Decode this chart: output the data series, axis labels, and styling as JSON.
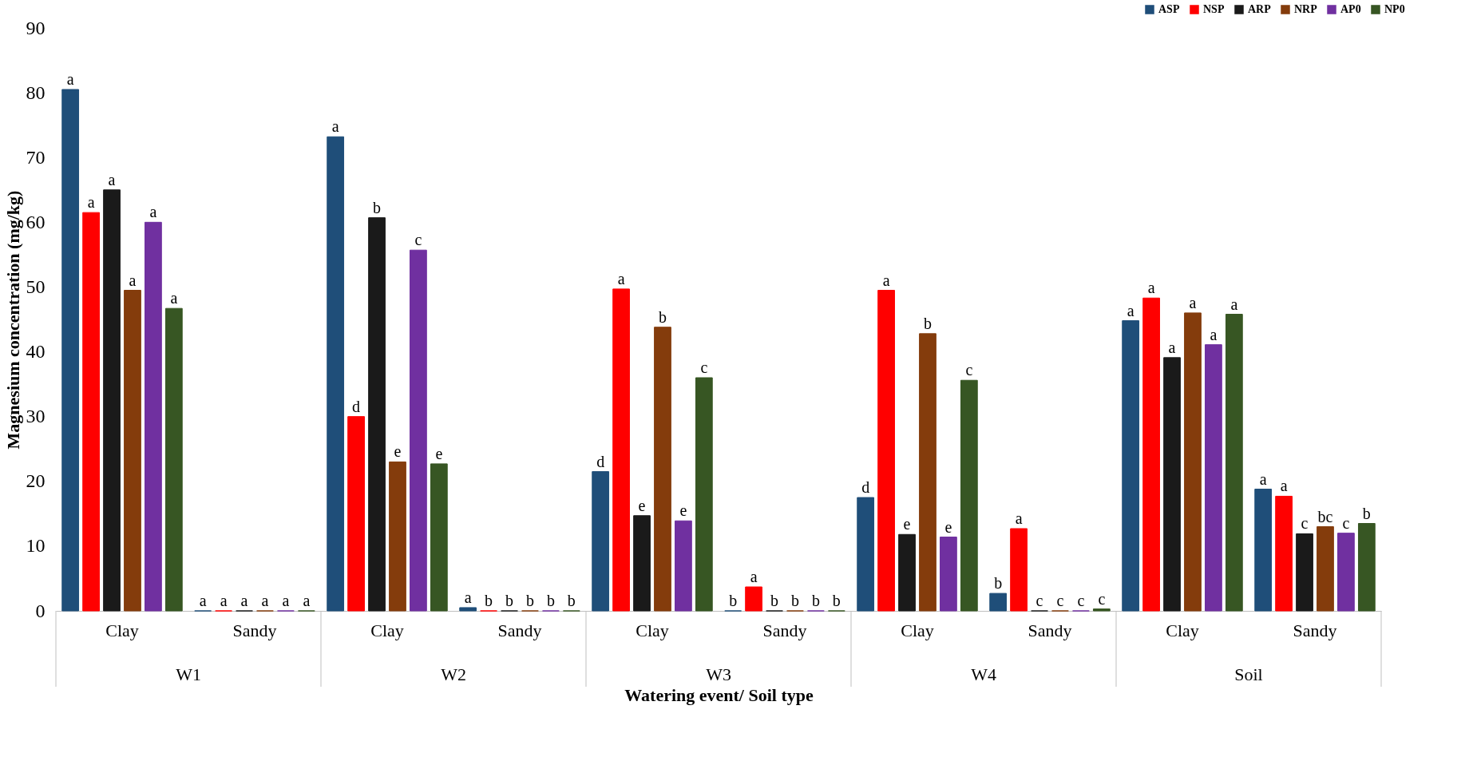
{
  "chart_data": {
    "type": "bar",
    "xlabel": "Watering event/ Soil type",
    "ylabel": "Magnesium concentration (mg/kg)",
    "categories": [
      "Clay",
      "Sandy",
      "Clay",
      "Sandy",
      "Clay",
      "Sandy",
      "Clay",
      "Sandy",
      "Clay",
      "Sandy"
    ],
    "annotations": [
      "W1",
      "W2",
      "W3",
      "W4",
      "Soil"
    ],
    "series": [
      {
        "name": "ASP",
        "color": "#1f4e79",
        "values": [
          80.5,
          0,
          73.2,
          0.5,
          21.5,
          0,
          17.5,
          2.7,
          44.8,
          18.8
        ],
        "value_labels": [
          "a",
          "a",
          "a",
          "a",
          "d",
          "b",
          "d",
          "b",
          "a",
          "a"
        ]
      },
      {
        "name": "NSP",
        "color": "#ff0000",
        "values": [
          61.5,
          0,
          30,
          0,
          49.7,
          3.7,
          49.5,
          12.7,
          48.3,
          17.7
        ],
        "value_labels": [
          "a",
          "a",
          "d",
          "b",
          "a",
          "a",
          "a",
          "a",
          "a",
          "a"
        ]
      },
      {
        "name": "ARP",
        "color": "#1a1a1a",
        "values": [
          65,
          0,
          60.7,
          0,
          14.7,
          0,
          11.8,
          0,
          39.1,
          11.9
        ],
        "value_labels": [
          "a",
          "a",
          "b",
          "b",
          "e",
          "b",
          "e",
          "c",
          "a",
          "c"
        ]
      },
      {
        "name": "NRP",
        "color": "#843c0c",
        "values": [
          49.5,
          0,
          23,
          0,
          43.8,
          0,
          42.8,
          0,
          46,
          13
        ],
        "value_labels": [
          "a",
          "a",
          "e",
          "b",
          "b",
          "b",
          "b",
          "c",
          "a",
          "bc"
        ]
      },
      {
        "name": "AP0",
        "color": "#7030a0",
        "values": [
          60,
          0,
          55.7,
          0,
          13.9,
          0,
          11.4,
          0,
          41.1,
          12
        ],
        "value_labels": [
          "a",
          "a",
          "c",
          "b",
          "e",
          "b",
          "e",
          "c",
          "a",
          "c"
        ]
      },
      {
        "name": "NP0",
        "color": "#375623",
        "values": [
          46.7,
          0,
          22.7,
          0,
          36,
          0,
          35.6,
          0.3,
          45.8,
          13.5
        ],
        "value_labels": [
          "a",
          "a",
          "e",
          "b",
          "c",
          "b",
          "c",
          "c",
          "a",
          "b"
        ]
      }
    ],
    "ylim": [
      0,
      90
    ],
    "yticks": [
      0,
      10,
      20,
      30,
      40,
      50,
      60,
      70,
      80,
      90
    ],
    "grid": false,
    "legend": "top right"
  }
}
